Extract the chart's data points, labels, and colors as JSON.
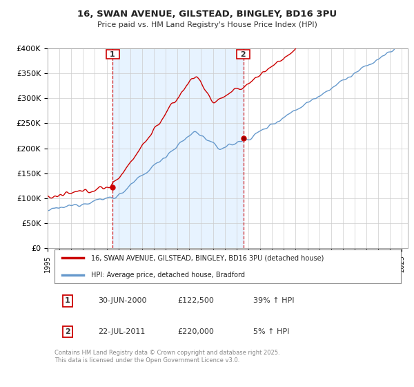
{
  "title_line1": "16, SWAN AVENUE, GILSTEAD, BINGLEY, BD16 3PU",
  "title_line2": "Price paid vs. HM Land Registry's House Price Index (HPI)",
  "background_color": "#ffffff",
  "grid_color": "#cccccc",
  "red_line_color": "#cc0000",
  "blue_line_color": "#6699cc",
  "vline_color": "#cc0000",
  "fill_color": "#ddeeff",
  "sale1_year": 2000.5,
  "sale2_year": 2011.583,
  "sale1_price": 122500,
  "sale2_price": 220000,
  "legend_entries": [
    "16, SWAN AVENUE, GILSTEAD, BINGLEY, BD16 3PU (detached house)",
    "HPI: Average price, detached house, Bradford"
  ],
  "table_rows": [
    [
      "1",
      "30-JUN-2000",
      "£122,500",
      "39% ↑ HPI"
    ],
    [
      "2",
      "22-JUL-2011",
      "£220,000",
      "5% ↑ HPI"
    ]
  ],
  "footer": "Contains HM Land Registry data © Crown copyright and database right 2025.\nThis data is licensed under the Open Government Licence v3.0.",
  "ylim": [
    0,
    400000
  ],
  "yticks": [
    0,
    50000,
    100000,
    150000,
    200000,
    250000,
    300000,
    350000,
    400000
  ],
  "ytick_labels": [
    "£0",
    "£50K",
    "£100K",
    "£150K",
    "£200K",
    "£250K",
    "£300K",
    "£350K",
    "£400K"
  ],
  "xlim_start": 1995,
  "xlim_end": 2025.5
}
